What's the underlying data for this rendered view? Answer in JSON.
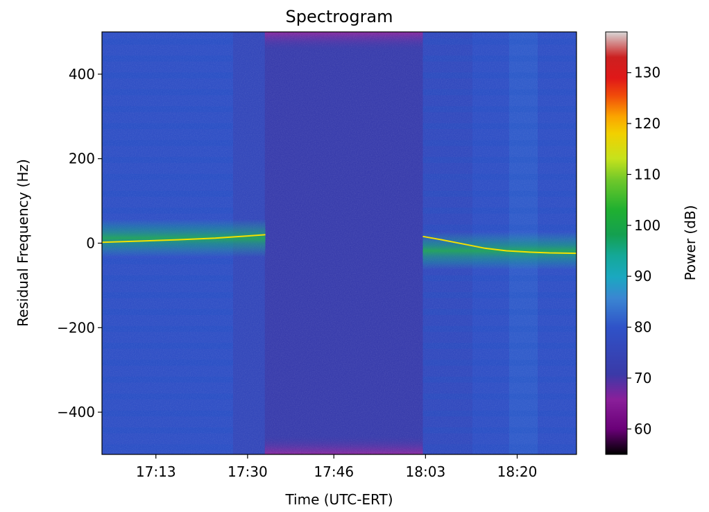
{
  "chart_data": {
    "type": "heatmap",
    "title": "Spectrogram",
    "xlabel": "Time (UTC-ERT)",
    "ylabel": "Residual Frequency (Hz)",
    "colorbar_label": "Power (dB)",
    "colormap": "nipy_spectral",
    "grid": false,
    "x_tick_labels": [
      "17:13",
      "17:30",
      "17:46",
      "18:03",
      "18:20"
    ],
    "x_tick_minutes": [
      1033,
      1050,
      1066,
      1083,
      1100
    ],
    "xlim_minutes": [
      1023,
      1111
    ],
    "ylim": [
      -500,
      500
    ],
    "y_ticks": [
      -400,
      -200,
      0,
      200,
      400
    ],
    "clim": [
      55,
      138
    ],
    "colorbar_ticks": [
      60,
      70,
      80,
      90,
      100,
      110,
      120,
      130
    ],
    "background_power_db": [
      {
        "t_start": 1023,
        "t_end": 1047.3,
        "level": 79,
        "description_free": true
      },
      {
        "t_start": 1047.3,
        "t_end": 1053.2,
        "level": 76
      },
      {
        "t_start": 1053.2,
        "t_end": 1082.5,
        "level": 72
      },
      {
        "t_start": 1082.5,
        "t_end": 1091.7,
        "level": 77
      },
      {
        "t_start": 1091.7,
        "t_end": 1098.5,
        "level": 79
      },
      {
        "t_start": 1098.5,
        "t_end": 1103.8,
        "level": 81
      },
      {
        "t_start": 1103.8,
        "t_end": 1111,
        "level": 79
      }
    ],
    "carrier": {
      "segments": [
        {
          "t": [
            1023,
            1030,
            1037,
            1044,
            1050,
            1053.3
          ],
          "f": [
            2,
            5,
            8,
            12,
            17,
            20
          ]
        },
        {
          "t": [
            1082.5,
            1086,
            1090,
            1094,
            1098,
            1102,
            1106,
            1111
          ],
          "f": [
            16,
            8,
            -2,
            -12,
            -18,
            -21,
            -23,
            -24
          ]
        }
      ]
    }
  }
}
